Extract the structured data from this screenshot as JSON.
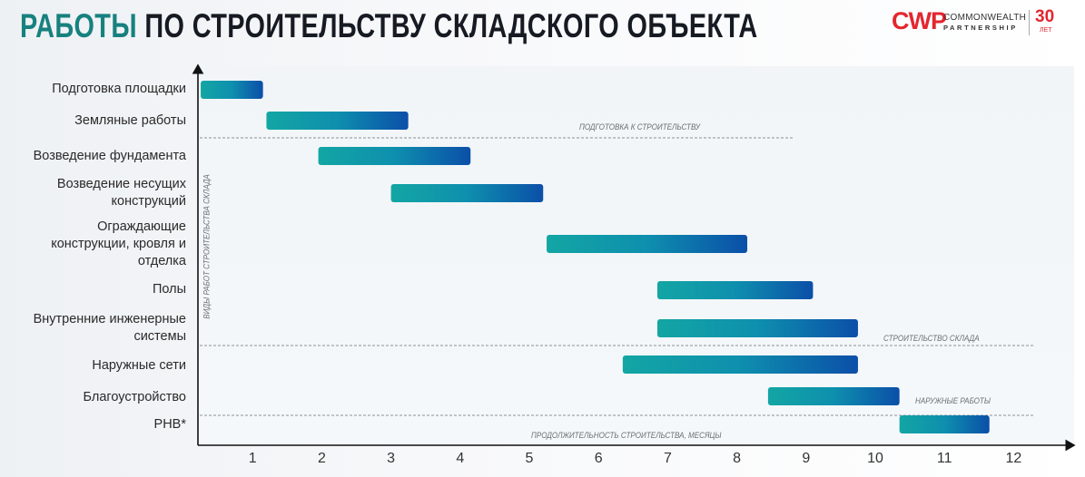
{
  "title": {
    "accent": "РАБОТЫ",
    "rest": "ПО СТРОИТЕЛЬСТВУ СКЛАДСКОГО ОБЪЕКТА"
  },
  "logo": {
    "mark": "CWP",
    "line1": "COMMONWEALTH",
    "line2": "PARTNERSHIP",
    "years": "30",
    "years_unit": "ЛЕТ"
  },
  "colors": {
    "accent": "#17817f",
    "bar_start": "#13a6a4",
    "bar_end": "#0b4fa8",
    "logo_red": "#e3262f"
  },
  "chart_data": {
    "type": "gantt",
    "xlabel": "ПРОДОЛЖИТЕЛЬНОСТЬ СТРОИТЕЛЬСТВА, МЕСЯЦЫ",
    "ylabel": "ВИДЫ РАБОТ СТРОИТЕЛЬСТВА СКЛАДА",
    "xticks": [
      "1",
      "2",
      "3",
      "4",
      "5",
      "6",
      "7",
      "8",
      "9",
      "10",
      "11",
      "12"
    ],
    "xlim": [
      0.2,
      12.8
    ],
    "tasks": [
      {
        "label": "Подготовка площадки",
        "start": 0.25,
        "end": 1.15
      },
      {
        "label": "Земляные работы",
        "start": 1.2,
        "end": 3.25
      },
      {
        "label": "Возведение фундамента",
        "start": 1.95,
        "end": 4.15
      },
      {
        "label": "Возведение несущих конструкций",
        "start": 3.0,
        "end": 5.2
      },
      {
        "label": "Ограждающие конструкции, кровля и отделка",
        "start": 5.25,
        "end": 8.15
      },
      {
        "label": "Полы",
        "start": 6.85,
        "end": 9.1
      },
      {
        "label": "Внутренние инженерные системы",
        "start": 6.85,
        "end": 9.75
      },
      {
        "label": "Наружные сети",
        "start": 6.35,
        "end": 9.75
      },
      {
        "label": "Благоустройство",
        "start": 8.45,
        "end": 10.35
      },
      {
        "label": "РНВ*",
        "start": 10.35,
        "end": 11.65
      }
    ],
    "phases": [
      {
        "label": "ПОДГОТОВКА К СТРОИТЕЛЬСТВУ",
        "after_task": 2
      },
      {
        "label": "СТРОИТЕЛЬСТВО СКЛАДА",
        "after_task": 7
      },
      {
        "label": "НАРУЖНЫЕ РАБОТЫ",
        "after_task": 9
      }
    ]
  }
}
